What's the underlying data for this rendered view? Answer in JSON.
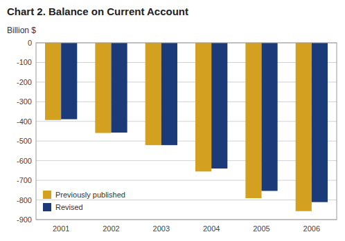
{
  "chart_data": {
    "type": "bar",
    "title": "Chart 2.  Balance on Current Account",
    "ylabel": "Billion $",
    "categories": [
      "2001",
      "2002",
      "2003",
      "2004",
      "2005",
      "2006"
    ],
    "series": [
      {
        "name": "Previously published",
        "color": "#D4A020",
        "values": [
          -393,
          -459,
          -521,
          -655,
          -791,
          -857
        ]
      },
      {
        "name": "Revised",
        "color": "#1B3A7A",
        "values": [
          -389,
          -457,
          -521,
          -640,
          -754,
          -811
        ]
      }
    ],
    "ylim": [
      -900,
      0
    ],
    "yticks": [
      0,
      -100,
      -200,
      -300,
      -400,
      -500,
      -600,
      -700,
      -800,
      -900
    ],
    "grid": true,
    "legend": "lower left"
  }
}
